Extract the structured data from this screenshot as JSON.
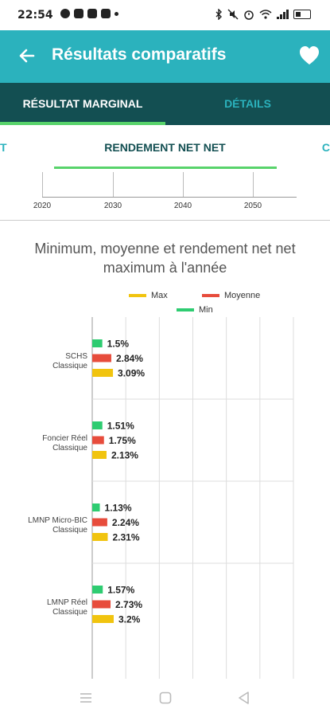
{
  "status_bar": {
    "time": "22:54",
    "left_icons": [
      "pinterest-icon",
      "youtube-icon",
      "instagram-icon",
      "app-icon",
      "dot-icon"
    ],
    "right_icons": [
      "bluetooth-icon",
      "mute-icon",
      "alarm-icon",
      "wifi-icon",
      "signal-icon",
      "battery-icon"
    ]
  },
  "app_bar": {
    "title": "Résultats comparatifs",
    "back_icon": "arrow-left-icon",
    "favorite_icon": "heart-icon",
    "color": "#2bb2bd"
  },
  "tabs": [
    {
      "label": "RÉSULTAT MARGINAL",
      "active": true
    },
    {
      "label": "DÉTAILS",
      "active": false
    }
  ],
  "subtabs": {
    "left_partial": "T",
    "active": "RENDEMENT NET NET",
    "right_partial": "C"
  },
  "timeline": {
    "labels": [
      "2020",
      "2030",
      "2040",
      "2050"
    ]
  },
  "chart_data": {
    "type": "bar",
    "orientation": "horizontal",
    "title": "Minimum, moyenne et rendement net net maximum à l'année",
    "categories": [
      "SCHS\nClassique",
      "Foncier Réel\nClassique",
      "LMNP Micro-BIC\nClassique",
      "LMNP Réel\nClassique"
    ],
    "series": [
      {
        "name": "Min",
        "color": "#2ecc71",
        "values": [
          1.5,
          1.51,
          1.13,
          1.57
        ],
        "labels": [
          "1.5%",
          "1.51%",
          "1.13%",
          "1.57%"
        ]
      },
      {
        "name": "Moyenne",
        "color": "#e74c3c",
        "values": [
          2.84,
          1.75,
          2.24,
          2.73
        ],
        "labels": [
          "2.84%",
          "1.75%",
          "2.24%",
          "2.73%"
        ]
      },
      {
        "name": "Max",
        "color": "#f1c40f",
        "values": [
          3.09,
          2.13,
          2.31,
          3.2
        ],
        "labels": [
          "3.09%",
          "2.13%",
          "2.31%",
          "3.2%"
        ]
      }
    ],
    "legend": [
      {
        "name": "Max",
        "color": "#f1c40f"
      },
      {
        "name": "Moyenne",
        "color": "#e74c3c"
      },
      {
        "name": "Min",
        "color": "#2ecc71"
      }
    ],
    "legend_position": "top",
    "grid": true,
    "xlim": [
      0,
      30
    ]
  },
  "nav_bar": {
    "icons": [
      "menu-icon",
      "home-square-icon",
      "back-triangle-icon"
    ]
  }
}
